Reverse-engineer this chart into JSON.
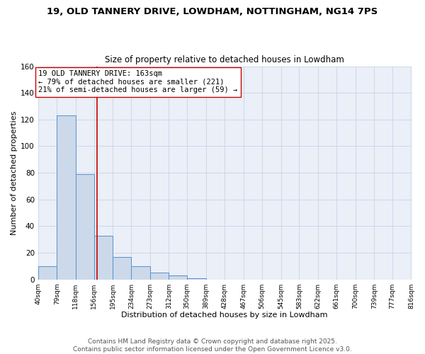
{
  "title1": "19, OLD TANNERY DRIVE, LOWDHAM, NOTTINGHAM, NG14 7PS",
  "title2": "Size of property relative to detached houses in Lowdham",
  "xlabel": "Distribution of detached houses by size in Lowdham",
  "ylabel": "Number of detached properties",
  "bin_edges": [
    40,
    79,
    118,
    156,
    195,
    234,
    273,
    312,
    350,
    389,
    428,
    467,
    506,
    545,
    583,
    622,
    661,
    700,
    739,
    777,
    816
  ],
  "counts": [
    10,
    123,
    79,
    33,
    17,
    10,
    5,
    3,
    1,
    0,
    0,
    0,
    0,
    0,
    0,
    0,
    0,
    0,
    0,
    0
  ],
  "bar_fill": "#ccd9ea",
  "bar_edge": "#5b8fc7",
  "property_size": 163,
  "vline_color": "#cc0000",
  "annotation_line1": "19 OLD TANNERY DRIVE: 163sqm",
  "annotation_line2": "← 79% of detached houses are smaller (221)",
  "annotation_line3": "21% of semi-detached houses are larger (59) →",
  "annotation_box_edge": "#cc0000",
  "annotation_box_fill": "white",
  "ylim": [
    0,
    160
  ],
  "yticks": [
    0,
    20,
    40,
    60,
    80,
    100,
    120,
    140,
    160
  ],
  "grid_color": "#c8d4e8",
  "bg_color": "#eaeff8",
  "footer1": "Contains HM Land Registry data © Crown copyright and database right 2025.",
  "footer2": "Contains public sector information licensed under the Open Government Licence v3.0.",
  "title1_fontsize": 9.5,
  "title2_fontsize": 8.5,
  "xlabel_fontsize": 8,
  "ylabel_fontsize": 8,
  "annotation_fontsize": 7.5,
  "tick_fontsize": 6.5,
  "ytick_fontsize": 7.5,
  "footer_fontsize": 6.5
}
